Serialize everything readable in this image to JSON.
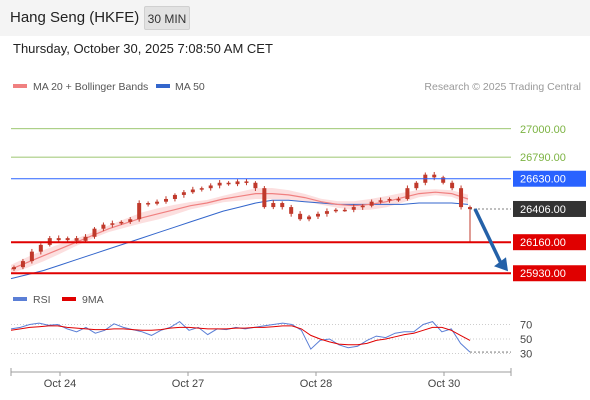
{
  "header": {
    "title": "Hang Seng (HKFE)",
    "timeframe": "30 MIN",
    "datetime": "Thursday, October 30, 2025 7:08:50 AM CET"
  },
  "legend": {
    "ma20_label": "MA 20 + Bollinger Bands",
    "ma50_label": "MA 50",
    "copyright": "Research © 2025 Trading Central"
  },
  "colors": {
    "candle": "#c0392b",
    "ma20": "#f08080",
    "ma50": "#3366cc",
    "bollinger_fill": "#fcdcdc",
    "target_green": "#7cb342",
    "pivot_blue": "#2962ff",
    "support_red": "#e00000",
    "current_price_bg": "#333333",
    "arrow": "#2461a8",
    "rsi": "#5b7fd6",
    "rsi_ma": "#e00000"
  },
  "chart_data": [
    {
      "type": "line",
      "subtype": "candlestick",
      "title": "Hang Seng (HKFE)",
      "x_tick_labels": [
        "Oct 24",
        "Oct 27",
        "Oct 28",
        "Oct 30"
      ],
      "y_range": [
        25880,
        27250
      ],
      "current_price": 26406,
      "price_levels": [
        {
          "label": "27000.00",
          "value": 27000,
          "kind": "target",
          "color": "#7cb342"
        },
        {
          "label": "26790.00",
          "value": 26790,
          "kind": "target",
          "color": "#7cb342"
        },
        {
          "label": "26630.00",
          "value": 26630,
          "kind": "pivot",
          "color": "#2962ff"
        },
        {
          "label": "26406.00",
          "value": 26406,
          "kind": "current",
          "color": "#333333"
        },
        {
          "label": "26160.00",
          "value": 26160,
          "kind": "support",
          "color": "#e00000"
        },
        {
          "label": "25930.00",
          "value": 25930,
          "kind": "support",
          "color": "#e00000"
        }
      ],
      "series": [
        {
          "name": "MA 20 + Bollinger Bands",
          "type": "line",
          "values": [
            25960,
            26010,
            26060,
            26110,
            26160,
            26210,
            26260,
            26300,
            26340,
            26370,
            26400,
            26430,
            26450,
            26480,
            26500,
            26520,
            26520,
            26510,
            26490,
            26460,
            26440,
            26430,
            26440,
            26460,
            26490,
            26520,
            26530,
            26520,
            26480
          ]
        },
        {
          "name": "MA 50",
          "type": "line",
          "values": [
            25890,
            25920,
            25950,
            25990,
            26030,
            26070,
            26110,
            26150,
            26190,
            26230,
            26270,
            26310,
            26350,
            26390,
            26420,
            26450,
            26470,
            26470,
            26460,
            26450,
            26440,
            26440,
            26440,
            26440,
            26440,
            26450,
            26450,
            26450,
            26440
          ]
        }
      ],
      "candles_close": [
        25975,
        26020,
        26090,
        26140,
        26190,
        26175,
        26190,
        26170,
        26200,
        26260,
        26290,
        26300,
        26310,
        26330,
        26450,
        26445,
        26460,
        26480,
        26510,
        26530,
        26550,
        26560,
        26580,
        26600,
        26590,
        26610,
        26600,
        26560,
        26420,
        26450,
        26420,
        26370,
        26330,
        26350,
        26370,
        26390,
        26400,
        26400,
        26420,
        26430,
        26460,
        26470,
        26480,
        26480,
        26560,
        26600,
        26660,
        26640,
        26600,
        26560,
        26420,
        26405
      ],
      "forecast_arrow": {
        "from": 26406,
        "to": 25930
      }
    },
    {
      "type": "line",
      "title": "RSI",
      "y_tick_labels": [
        "70",
        "50",
        "30"
      ],
      "y_range": [
        10,
        90
      ],
      "series": [
        {
          "name": "RSI",
          "type": "line",
          "values": [
            64,
            66,
            70,
            72,
            69,
            70,
            64,
            60,
            66,
            58,
            62,
            71,
            66,
            63,
            60,
            55,
            62,
            66,
            74,
            62,
            66,
            56,
            64,
            63,
            66,
            64,
            66,
            68,
            70,
            72,
            70,
            62,
            36,
            48,
            50,
            42,
            38,
            40,
            48,
            54,
            52,
            58,
            60,
            60,
            70,
            74,
            60,
            64,
            44,
            32
          ]
        },
        {
          "name": "9MA",
          "type": "line",
          "values": [
            62,
            64,
            66,
            67,
            68,
            68,
            66,
            65,
            64,
            63,
            63,
            64,
            64,
            63,
            62,
            62,
            63,
            65,
            66,
            66,
            65,
            64,
            64,
            64,
            65,
            65,
            66,
            66,
            67,
            68,
            68,
            64,
            55,
            50,
            46,
            43,
            42,
            42,
            44,
            48,
            50,
            53,
            56,
            58,
            62,
            66,
            66,
            62,
            55,
            48
          ]
        }
      ]
    }
  ]
}
